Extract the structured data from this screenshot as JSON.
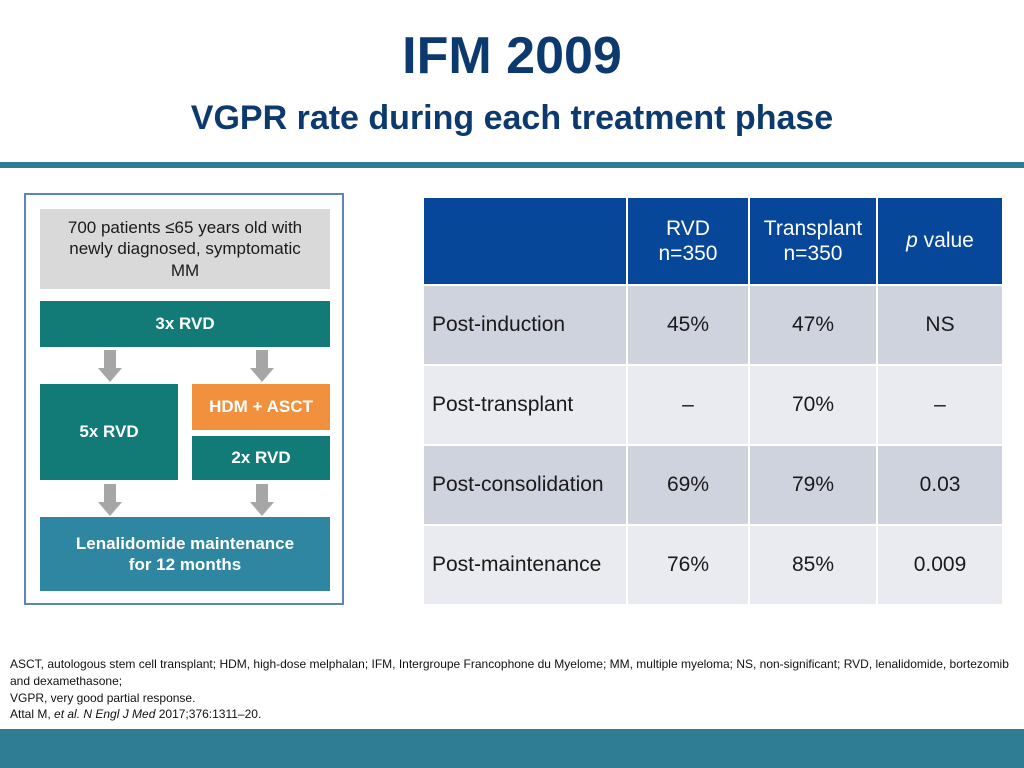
{
  "header": {
    "title": "IFM 2009",
    "subtitle": "VGPR rate during each treatment phase"
  },
  "flow": {
    "patients": "700 patients ≤65 years old with newly diagnosed, symptomatic MM",
    "induction": "3x RVD",
    "arm_rvd": "5x RVD",
    "arm_transplant": "HDM + ASCT",
    "consolidation": "2x RVD",
    "maintenance": "Lenalidomide maintenance for 12 months"
  },
  "table": {
    "columns": [
      {
        "line1": "RVD",
        "line2": "n=350"
      },
      {
        "line1": "Transplant",
        "line2": "n=350"
      },
      {
        "p": "p",
        "rest": " value"
      }
    ],
    "rows": [
      {
        "phase": "Post-induction",
        "rvd": "45%",
        "transplant": "47%",
        "p": "NS"
      },
      {
        "phase": "Post-transplant",
        "rvd": "–",
        "transplant": "70%",
        "p": "–"
      },
      {
        "phase": "Post-consolidation",
        "rvd": "69%",
        "transplant": "79%",
        "p": "0.03"
      },
      {
        "phase": "Post-maintenance",
        "rvd": "76%",
        "transplant": "85%",
        "p": "0.009"
      }
    ]
  },
  "footnote": {
    "abbrev1": "ASCT, autologous stem cell transplant; HDM, high-dose melphalan; IFM, Intergroupe Francophone du Myelome; MM, multiple myeloma; NS, non-significant; RVD, lenalidomide, bortezomib and dexamethasone;",
    "abbrev2": "VGPR, very good partial response.",
    "cite_author": "Attal M, ",
    "cite_etal": "et al. N Engl J Med",
    "cite_rest": " 2017;376:1311–20."
  }
}
